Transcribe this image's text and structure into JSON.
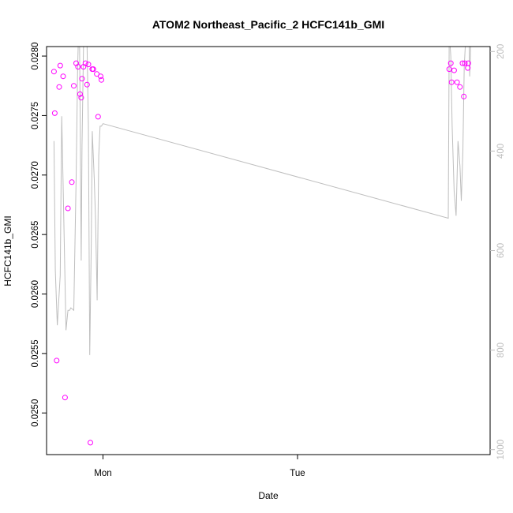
{
  "chart_data": {
    "type": "scatter",
    "title": "ATOM2 Northeast_Pacific_2 HCFC141b_GMI",
    "xlabel": "Date",
    "ylabel": "HCFC141b_GMI",
    "x_ticks": [
      "Mon",
      "Tue"
    ],
    "x_tick_positions_days": [
      0,
      1
    ],
    "xlim_days": [
      -0.29,
      1.99
    ],
    "y_ticks": [
      "0.0250",
      "0.0255",
      "0.0260",
      "0.0265",
      "0.0270",
      "0.0275",
      "0.0280"
    ],
    "ylim": [
      0.02465,
      0.02808
    ],
    "y2_ticks": [
      "200",
      "400",
      "600",
      "800",
      "1000"
    ],
    "y2lim": [
      1010,
      190
    ],
    "grid": false,
    "colors": {
      "points": "#ff00ff",
      "line": "#bebebe",
      "axis": "#000000",
      "right_axis": "#bebebe"
    },
    "series": [
      {
        "style": "points",
        "axis": "left",
        "x": [
          -0.252,
          -0.248,
          -0.238,
          -0.225,
          -0.22,
          -0.205,
          -0.195,
          -0.18,
          -0.16,
          -0.15,
          -0.138,
          -0.128,
          -0.118,
          -0.112,
          -0.108,
          -0.1,
          -0.09,
          -0.082,
          -0.075,
          -0.065,
          -0.055,
          -0.05,
          -0.032,
          -0.025,
          -0.012,
          -0.008,
          1.78,
          1.788,
          1.792,
          1.805,
          1.82,
          1.835,
          1.848,
          1.855,
          1.86,
          1.875,
          1.878
        ],
        "y": [
          0.02787,
          0.02752,
          0.02544,
          0.02774,
          0.02792,
          0.02783,
          0.02513,
          0.02672,
          0.02694,
          0.02775,
          0.02794,
          0.02791,
          0.02768,
          0.02765,
          0.02781,
          0.02791,
          0.02794,
          0.02776,
          0.02793,
          0.02475,
          0.02789,
          0.02789,
          0.02785,
          0.02749,
          0.02783,
          0.0278,
          0.02789,
          0.02794,
          0.02778,
          0.02788,
          0.02778,
          0.02774,
          0.02794,
          0.02766,
          0.02794,
          0.0279,
          0.02794
        ]
      },
      {
        "style": "line",
        "axis": "right",
        "x": [
          -0.252,
          -0.245,
          -0.235,
          -0.22,
          -0.212,
          -0.205,
          -0.19,
          -0.18,
          -0.172,
          -0.165,
          -0.15,
          -0.138,
          -0.13,
          -0.122,
          -0.118,
          -0.112,
          -0.108,
          -0.1,
          -0.092,
          -0.085,
          -0.075,
          -0.068,
          -0.06,
          -0.055,
          -0.045,
          -0.038,
          -0.03,
          -0.022,
          -0.015,
          -0.008,
          0.0,
          1.775,
          1.78,
          1.788,
          1.795,
          1.805,
          1.815,
          1.825,
          1.835,
          1.842,
          1.85,
          1.857,
          1.865,
          1.87,
          1.88,
          1.885,
          1.89
        ],
        "y": [
          380,
          640,
          750,
          650,
          330,
          470,
          760,
          720,
          720,
          715,
          720,
          450,
          230,
          110,
          300,
          620,
          390,
          190,
          130,
          110,
          350,
          810,
          580,
          360,
          455,
          540,
          700,
          410,
          350,
          350,
          345,
          535,
          160,
          210,
          350,
          480,
          530,
          380,
          430,
          500,
          400,
          230,
          170,
          130,
          120,
          250,
          190
        ]
      }
    ]
  }
}
